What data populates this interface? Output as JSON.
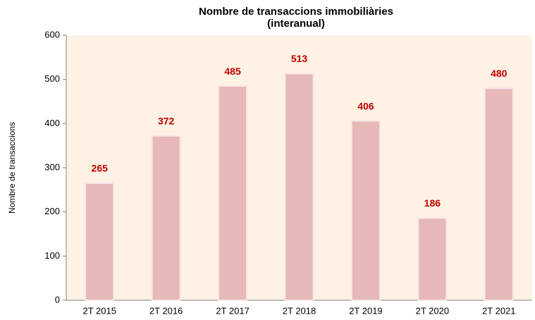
{
  "chart_data": {
    "type": "bar",
    "title": [
      "Nombre de transaccions immobiliàries",
      "(interanual)"
    ],
    "ylabel": "Nombre de transaccions",
    "categories": [
      "2T 2015",
      "2T 2016",
      "2T 2017",
      "2T 2018",
      "2T 2019",
      "2T 2020",
      "2T 2021"
    ],
    "values": [
      265,
      372,
      485,
      513,
      406,
      186,
      480
    ],
    "color": "#e6b8b8",
    "label_color": "#c00000",
    "background": "#fdf2e3",
    "ylim": [
      0,
      600
    ],
    "yticks": [
      0,
      100,
      200,
      300,
      400,
      500,
      600
    ],
    "grid": false
  }
}
